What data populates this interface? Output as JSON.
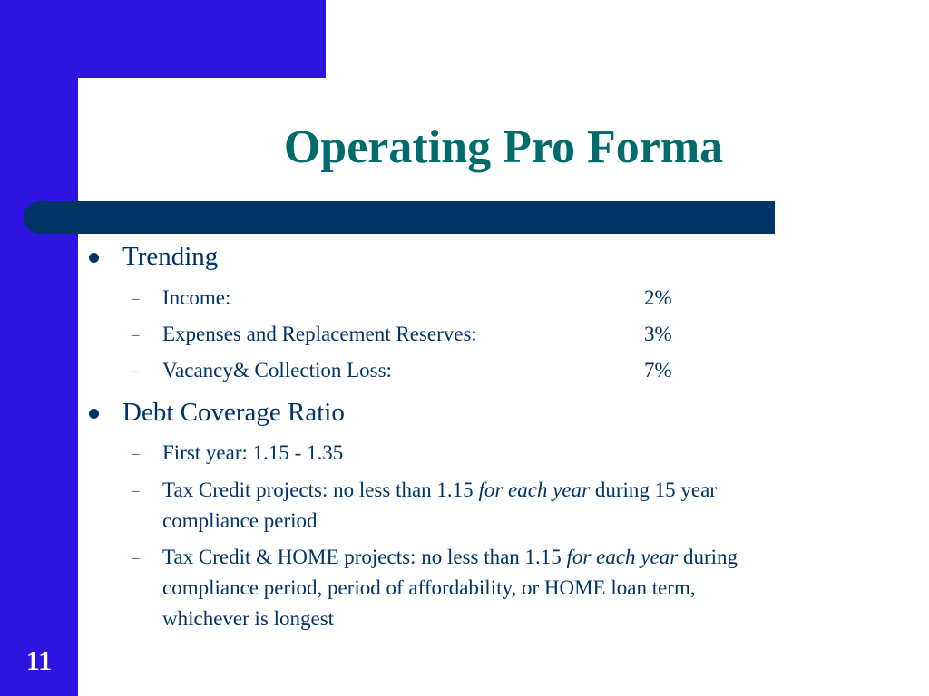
{
  "slide": {
    "title": "Operating Pro Forma",
    "number": "11",
    "colors": {
      "frame_blue": "#2E14E0",
      "bar_navy": "#003366",
      "title_teal": "#006B6B"
    },
    "trending": {
      "label": "Trending",
      "items": [
        {
          "label": "Income:",
          "value": "2%"
        },
        {
          "label": "Expenses and Replacement Reserves:",
          "value": "3%"
        },
        {
          "label": "Vacancy& Collection Loss:",
          "value": "7%"
        }
      ]
    },
    "debt_coverage": {
      "label": "Debt Coverage Ratio",
      "first_year": "First year: 1.15 - 1.35",
      "tax_credit": {
        "before": "Tax Credit projects: no less than 1.15 ",
        "emphasis": "for each year",
        "after": " during 15 year",
        "line2": "compliance period"
      },
      "tax_credit_home": {
        "before": "Tax Credit & HOME projects: no less than 1.15 ",
        "emphasis": "for each year",
        "after": " during",
        "line2": "compliance period, period of affordability, or HOME loan term,",
        "line3": "whichever is longest"
      }
    }
  }
}
